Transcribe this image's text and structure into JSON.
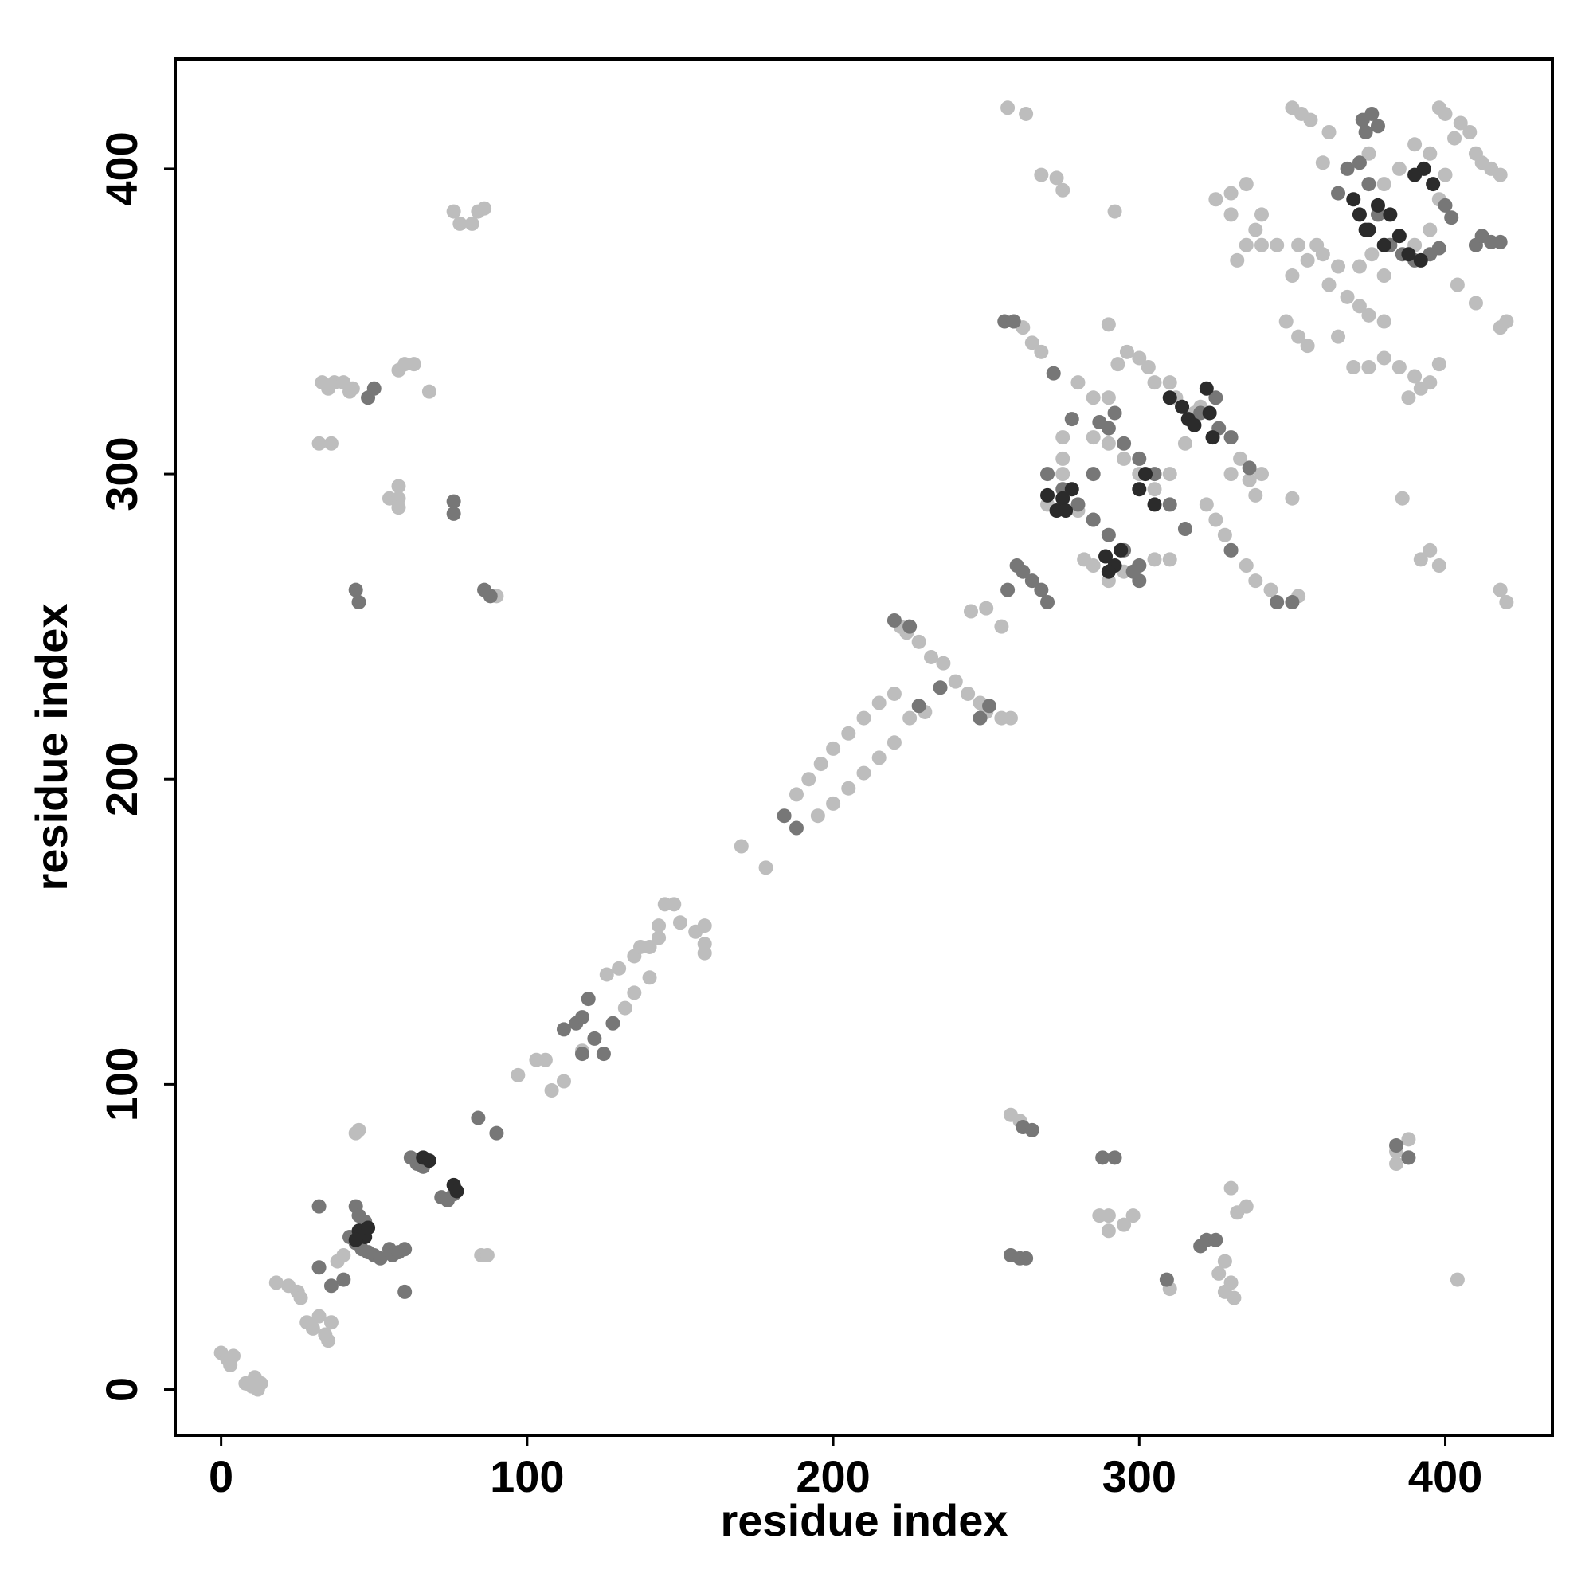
{
  "chart_data": {
    "type": "scatter",
    "x_label": "residue index",
    "y_label": "residue index",
    "xlim": [
      -15,
      435
    ],
    "ylim": [
      -15,
      436
    ],
    "xticks": [
      0,
      100,
      200,
      300,
      400
    ],
    "yticks": [
      0,
      100,
      200,
      300,
      400
    ],
    "series": [
      {
        "color": "#bdbdbd",
        "x": [
          0,
          2,
          3,
          4,
          8,
          10,
          12,
          11,
          13,
          18,
          22,
          25,
          26,
          28,
          30,
          32,
          34,
          36,
          35,
          38,
          40,
          44,
          45,
          33,
          35,
          37,
          40,
          43,
          42,
          32,
          36,
          55,
          58,
          58,
          58,
          58,
          60,
          63,
          68,
          76,
          78,
          82,
          84,
          86,
          85,
          87,
          90,
          97,
          103,
          106,
          108,
          112,
          118,
          126,
          130,
          135,
          137,
          140,
          143,
          143,
          145,
          148,
          150,
          155,
          158,
          158,
          158,
          140,
          135,
          132,
          170,
          178,
          188,
          192,
          196,
          200,
          205,
          210,
          215,
          220,
          222,
          224,
          228,
          232,
          236,
          240,
          244,
          248,
          250,
          255,
          258,
          195,
          200,
          205,
          210,
          215,
          220,
          225,
          230,
          250,
          255,
          257,
          263,
          262,
          265,
          268,
          268,
          273,
          275,
          258,
          261,
          270,
          275,
          280,
          285,
          275,
          275,
          275,
          280,
          282,
          285,
          290,
          295,
          300,
          305,
          310,
          293,
          296,
          300,
          303,
          305,
          290,
          285,
          280,
          285,
          290,
          295,
          300,
          305,
          310,
          315,
          318,
          320,
          322,
          325,
          328,
          330,
          333,
          336,
          338,
          340,
          343,
          338,
          335,
          330,
          310,
          312,
          292,
          290,
          290,
          295,
          298,
          287,
          290,
          325,
          330,
          335,
          330,
          335,
          338,
          340,
          332,
          340,
          345,
          348,
          352,
          355,
          350,
          355,
          360,
          365,
          362,
          368,
          372,
          375,
          380,
          358,
          352,
          365,
          370,
          375,
          380,
          385,
          390,
          395,
          398,
          388,
          392,
          372,
          376,
          380,
          390,
          395,
          398,
          400,
          403,
          405,
          408,
          410,
          412,
          415,
          418,
          400,
          398,
          395,
          390,
          385,
          380,
          375,
          360,
          350,
          353,
          356,
          362,
          418,
          420,
          420,
          418,
          410,
          404,
          395,
          398,
          392,
          386,
          350,
          352,
          330,
          332,
          335,
          326,
          328,
          330,
          331,
          328,
          310,
          384,
          388,
          384,
          388,
          404,
          245
        ],
        "y": [
          12,
          10,
          8,
          11,
          2,
          1,
          0,
          4,
          2,
          35,
          34,
          32,
          30,
          22,
          20,
          24,
          18,
          22,
          16,
          42,
          44,
          84,
          85,
          330,
          328,
          330,
          330,
          328,
          327,
          310,
          310,
          292,
          292,
          296,
          289,
          334,
          336,
          336,
          327,
          386,
          382,
          382,
          386,
          387,
          44,
          44,
          260,
          103,
          108,
          108,
          98,
          101,
          111,
          136,
          138,
          142,
          145,
          145,
          148,
          152,
          159,
          159,
          153,
          150,
          146,
          152,
          143,
          135,
          130,
          125,
          178,
          171,
          195,
          200,
          205,
          210,
          215,
          220,
          225,
          228,
          250,
          248,
          245,
          240,
          238,
          232,
          228,
          225,
          222,
          220,
          220,
          188,
          192,
          197,
          202,
          207,
          212,
          220,
          222,
          256,
          250,
          420,
          418,
          348,
          343,
          340,
          398,
          397,
          393,
          90,
          88,
          290,
          292,
          288,
          285,
          305,
          312,
          300,
          290,
          272,
          270,
          265,
          268,
          270,
          272,
          272,
          336,
          340,
          338,
          335,
          330,
          325,
          325,
          330,
          312,
          310,
          305,
          300,
          295,
          300,
          310,
          320,
          322,
          290,
          285,
          280,
          300,
          305,
          298,
          293,
          300,
          262,
          265,
          270,
          275,
          330,
          325,
          386,
          349,
          57,
          54,
          57,
          57,
          52,
          390,
          392,
          395,
          385,
          375,
          380,
          375,
          370,
          385,
          375,
          350,
          345,
          342,
          365,
          370,
          372,
          368,
          362,
          358,
          355,
          352,
          350,
          375,
          375,
          345,
          335,
          335,
          338,
          335,
          332,
          330,
          336,
          325,
          328,
          368,
          372,
          365,
          375,
          380,
          390,
          398,
          410,
          415,
          412,
          405,
          402,
          400,
          398,
          418,
          420,
          405,
          408,
          400,
          395,
          405,
          402,
          420,
          418,
          416,
          412,
          262,
          258,
          350,
          348,
          356,
          362,
          275,
          270,
          272,
          292,
          292,
          260,
          66,
          58,
          60,
          38,
          32,
          35,
          30,
          42,
          33,
          78,
          82,
          74,
          76,
          36,
          255
        ]
      },
      {
        "color": "#777777",
        "x": [
          32,
          44,
          45,
          47,
          42,
          44,
          46,
          48,
          50,
          52,
          55,
          56,
          58,
          60,
          60,
          62,
          64,
          66,
          72,
          74,
          76,
          84,
          90,
          32,
          36,
          40,
          48,
          50,
          76,
          76,
          44,
          45,
          86,
          88,
          112,
          116,
          118,
          120,
          118,
          122,
          128,
          125,
          184,
          188,
          220,
          225,
          228,
          235,
          248,
          251,
          257,
          260,
          262,
          265,
          268,
          270,
          256,
          259,
          270,
          275,
          280,
          285,
          290,
          295,
          300,
          290,
          295,
          300,
          305,
          310,
          315,
          292,
          287,
          285,
          300,
          298,
          320,
          325,
          326,
          330,
          336,
          330,
          345,
          350,
          272,
          278,
          288,
          292,
          320,
          322,
          325,
          309,
          258,
          261,
          263,
          262,
          265,
          365,
          368,
          372,
          375,
          378,
          382,
          386,
          390,
          395,
          398,
          400,
          402,
          373,
          374,
          376,
          378,
          410,
          412,
          415,
          418,
          388,
          384
        ],
        "y": [
          60,
          60,
          57,
          55,
          50,
          48,
          46,
          45,
          44,
          43,
          46,
          44,
          45,
          32,
          46,
          76,
          74,
          73,
          63,
          62,
          64,
          89,
          84,
          40,
          34,
          36,
          325,
          328,
          291,
          287,
          262,
          258,
          262,
          260,
          118,
          120,
          122,
          128,
          110,
          115,
          120,
          110,
          188,
          184,
          252,
          250,
          224,
          230,
          220,
          224,
          262,
          270,
          268,
          265,
          262,
          258,
          350,
          350,
          300,
          295,
          290,
          285,
          280,
          275,
          270,
          315,
          310,
          305,
          300,
          290,
          282,
          320,
          317,
          300,
          265,
          268,
          320,
          325,
          315,
          312,
          302,
          275,
          258,
          258,
          333,
          318,
          76,
          76,
          47,
          49,
          49,
          36,
          44,
          43,
          43,
          86,
          85,
          392,
          400,
          402,
          395,
          385,
          375,
          372,
          370,
          372,
          374,
          388,
          384,
          416,
          412,
          418,
          414,
          375,
          378,
          376,
          376,
          76,
          80
        ]
      },
      {
        "color": "#2b2b2b",
        "x": [
          66,
          68,
          76,
          77,
          45,
          47,
          44,
          48,
          270,
          273,
          275,
          278,
          276,
          289,
          292,
          294,
          290,
          310,
          314,
          316,
          318,
          322,
          324,
          323,
          300,
          305,
          302,
          370,
          372,
          375,
          378,
          382,
          385,
          390,
          393,
          396,
          380,
          388,
          392,
          374
        ],
        "y": [
          76,
          75,
          67,
          65,
          52,
          50,
          49,
          53,
          293,
          288,
          292,
          295,
          288,
          273,
          270,
          275,
          268,
          325,
          322,
          318,
          316,
          328,
          312,
          320,
          295,
          290,
          300,
          390,
          385,
          380,
          388,
          385,
          378,
          398,
          400,
          395,
          375,
          372,
          370,
          380
        ]
      }
    ]
  }
}
